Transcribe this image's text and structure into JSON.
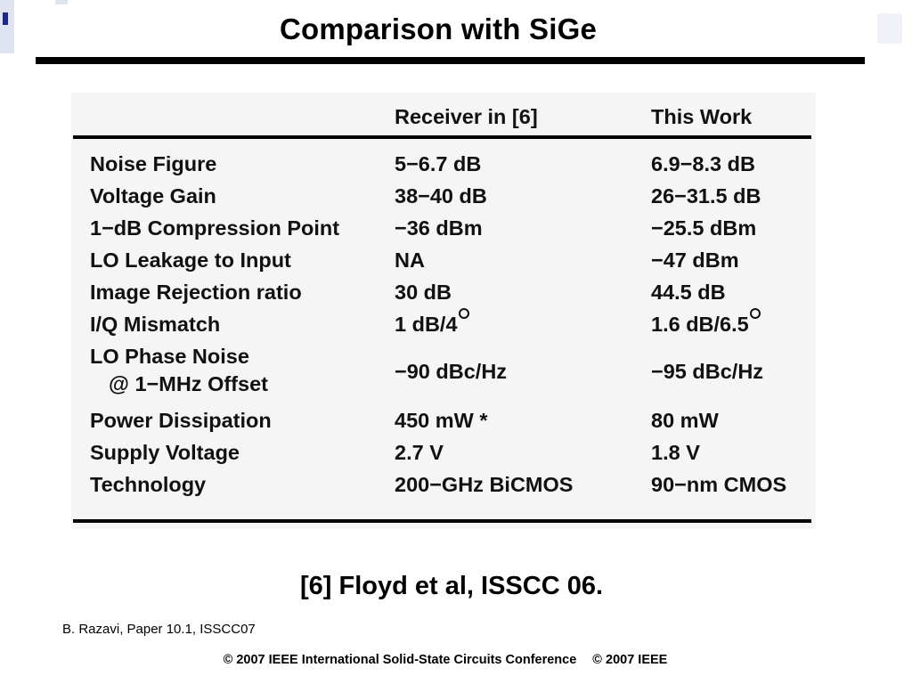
{
  "slide": {
    "title": "Comparison with SiGe"
  },
  "table": {
    "headers": [
      "",
      "Receiver in [6]",
      "This Work"
    ],
    "rows": [
      {
        "param": "Noise Figure",
        "receiver": "5−6.7 dB",
        "this_work": "6.9−8.3 dB"
      },
      {
        "param": "Voltage Gain",
        "receiver": "38−40 dB",
        "this_work": "26−31.5 dB"
      },
      {
        "param": "1−dB Compression Point",
        "receiver": "−36 dBm",
        "this_work": "−25.5 dBm"
      },
      {
        "param": "LO Leakage to Input",
        "receiver": "NA",
        "this_work": "−47 dBm"
      },
      {
        "param": "Image Rejection ratio",
        "receiver": "30 dB",
        "this_work": "44.5 dB"
      },
      {
        "param": "I/Q Mismatch",
        "receiver": "1 dB/4",
        "this_work": "1.6 dB/6.5"
      },
      {
        "param": "LO Phase Noise",
        "param_line2": "@ 1−MHz Offset",
        "receiver": "−90 dBc/Hz",
        "this_work": "−95 dBc/Hz"
      },
      {
        "param": "Power Dissipation",
        "receiver": "450 mW *",
        "this_work": "80 mW"
      },
      {
        "param": "Supply Voltage",
        "receiver": "2.7 V",
        "this_work": "1.8 V"
      },
      {
        "param": "Technology",
        "receiver": "200−GHz BiCMOS",
        "this_work": "90−nm CMOS"
      }
    ]
  },
  "reference": "[6] Floyd et al, ISSCC 06.",
  "author": "B. Razavi, Paper 10.1, ISSCC07",
  "footer": {
    "conference": "© 2007  IEEE International Solid-State Circuits Conference",
    "copyright": "© 2007 IEEE"
  }
}
